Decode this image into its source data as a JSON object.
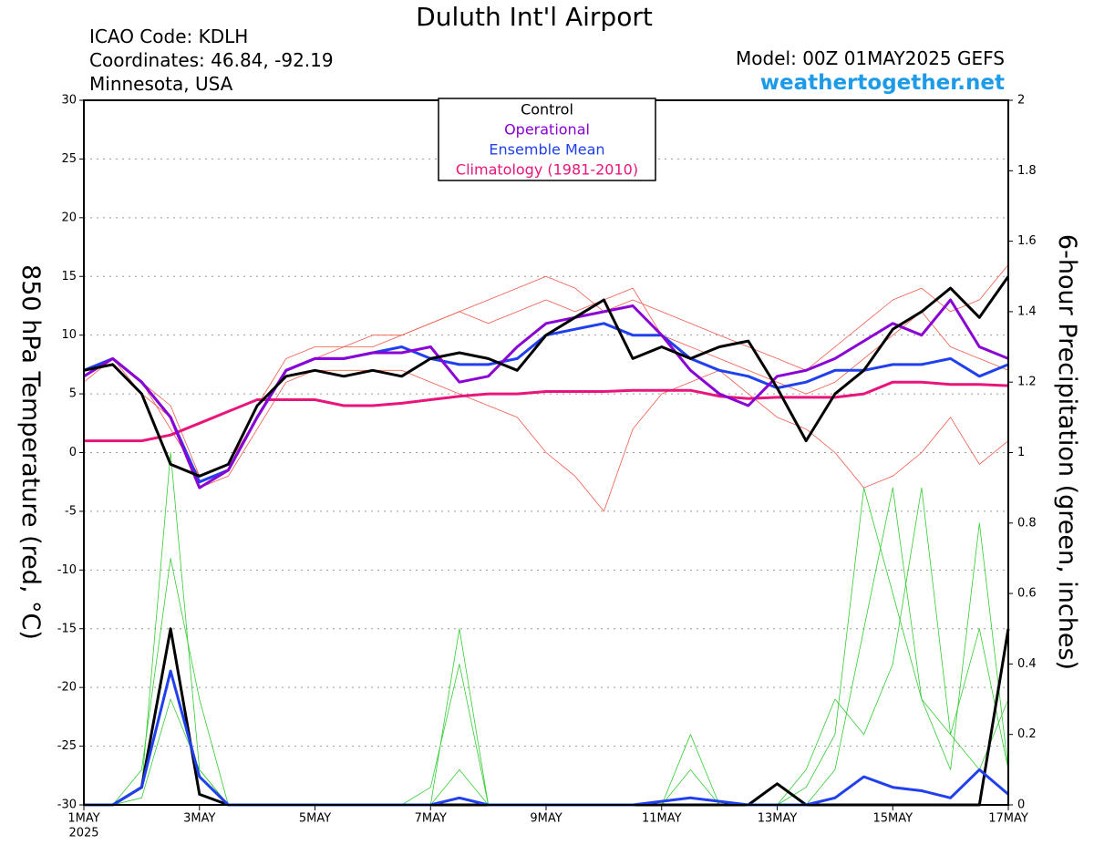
{
  "chart_data": {
    "type": "line",
    "title": "Duluth Int'l Airport",
    "info_lines": [
      "ICAO Code: KDLH",
      "Coordinates: 46.84, -92.19",
      "Minnesota, USA"
    ],
    "model": "Model: 00Z 01MAY2025 GEFS",
    "site": "weathertogether.net",
    "y_label": "850 hPa Temperature (red, °C)",
    "y2_label": "6-hour Precipitation (green, inches)",
    "x_year": "2025",
    "legend": "top-center",
    "grid": true,
    "x": [
      0,
      0.5,
      1,
      1.5,
      2,
      2.5,
      3,
      3.5,
      4,
      4.5,
      5,
      5.5,
      6,
      6.5,
      7,
      7.5,
      8,
      8.5,
      9,
      9.5,
      10,
      10.5,
      11,
      11.5,
      12,
      12.5,
      13,
      13.5,
      14,
      14.5,
      15,
      15.5,
      16
    ],
    "xlim": [
      0,
      16
    ],
    "xticks": [
      {
        "value": 0,
        "label": "1MAY"
      },
      {
        "value": 2,
        "label": "3MAY"
      },
      {
        "value": 4,
        "label": "5MAY"
      },
      {
        "value": 6,
        "label": "7MAY"
      },
      {
        "value": 8,
        "label": "9MAY"
      },
      {
        "value": 10,
        "label": "11MAY"
      },
      {
        "value": 12,
        "label": "13MAY"
      },
      {
        "value": 14,
        "label": "15MAY"
      },
      {
        "value": 16,
        "label": "17MAY"
      }
    ],
    "ylim": [
      -30,
      30
    ],
    "yticks": [
      -30,
      -25,
      -20,
      -15,
      -10,
      -5,
      0,
      5,
      10,
      15,
      20,
      25,
      30
    ],
    "y2lim": [
      0,
      2
    ],
    "y2ticks": [
      0,
      0.2,
      0.4,
      0.6,
      0.8,
      1,
      1.2,
      1.4,
      1.6,
      1.8,
      2
    ],
    "series": [
      {
        "color": "#f05a4a",
        "values": [
          7,
          8,
          6,
          2,
          -2,
          -1,
          4,
          8,
          9,
          9,
          10,
          10,
          11,
          12,
          13,
          14,
          15,
          14,
          12,
          13,
          12,
          11,
          10,
          9,
          8,
          7,
          9,
          11,
          13,
          14,
          12,
          13,
          16
        ]
      },
      {
        "color": "#f05a4a",
        "values": [
          6,
          8,
          5,
          3,
          -3,
          -2,
          2,
          6,
          7,
          7,
          7,
          7,
          6,
          5,
          4,
          3,
          0,
          -2,
          -5,
          2,
          5,
          6,
          7,
          5,
          3,
          2,
          0,
          -3,
          -2,
          0,
          3,
          -1,
          1
        ]
      },
      {
        "color": "#f05a4a",
        "values": [
          7,
          8,
          6,
          4,
          -2,
          -1,
          3,
          7,
          8,
          9,
          9,
          10,
          11,
          12,
          11,
          12,
          13,
          12,
          13,
          14,
          10,
          9,
          8,
          7,
          6,
          5,
          6,
          8,
          10,
          12,
          9,
          8,
          7
        ]
      },
      {
        "color": "#33cc33",
        "axis": "y2",
        "values": [
          0,
          0,
          0.05,
          1.0,
          0.1,
          0,
          0,
          0,
          0,
          0,
          0,
          0,
          0.05,
          0.4,
          0,
          0,
          0,
          0,
          0,
          0,
          0,
          0,
          0,
          0,
          0,
          0.05,
          0.2,
          0.9,
          0.6,
          0.3,
          0.1,
          0.8,
          0.1
        ]
      },
      {
        "color": "#33cc33",
        "axis": "y2",
        "values": [
          0,
          0,
          0.1,
          0.7,
          0.3,
          0,
          0,
          0,
          0,
          0,
          0,
          0,
          0,
          0.5,
          0,
          0,
          0,
          0,
          0,
          0,
          0,
          0.1,
          0,
          0,
          0,
          0.1,
          0.3,
          0.2,
          0.4,
          0.9,
          0.2,
          0.5,
          0.1
        ]
      },
      {
        "color": "#33cc33",
        "axis": "y2",
        "values": [
          0,
          0,
          0.02,
          0.3,
          0.1,
          0,
          0,
          0,
          0,
          0,
          0,
          0,
          0,
          0.1,
          0,
          0,
          0,
          0,
          0,
          0,
          0,
          0.2,
          0,
          0,
          0,
          0,
          0.1,
          0.5,
          0.9,
          0.3,
          0.2,
          0.1,
          0.3
        ]
      },
      {
        "color": "#000000",
        "axis": "y2",
        "values": [
          0,
          0,
          0.05,
          0.5,
          0.03,
          0,
          0,
          0,
          0,
          0,
          0,
          0,
          0,
          0,
          0,
          0,
          0,
          0,
          0,
          0,
          0,
          0,
          0,
          0,
          0.06,
          0,
          0,
          0,
          0,
          0,
          0,
          0,
          0.5
        ]
      },
      {
        "color": "#2040ee",
        "axis": "y2",
        "values": [
          0,
          0,
          0.05,
          0.38,
          0.08,
          0,
          0,
          0,
          0,
          0,
          0,
          0,
          0,
          0.02,
          0,
          0,
          0,
          0,
          0,
          0,
          0.01,
          0.02,
          0.01,
          0,
          0,
          0,
          0.02,
          0.08,
          0.05,
          0.04,
          0.02,
          0.1,
          0.03
        ]
      },
      {
        "name": "Climatology (1981-2010)",
        "color": "#e8157a",
        "values": [
          1,
          1,
          1,
          1.5,
          2.5,
          3.5,
          4.5,
          4.5,
          4.5,
          4,
          4,
          4.2,
          4.5,
          4.8,
          5,
          5,
          5.2,
          5.2,
          5.2,
          5.3,
          5.3,
          5.3,
          4.8,
          4.6,
          4.7,
          4.7,
          4.7,
          5,
          6,
          6,
          5.8,
          5.8,
          5.7
        ]
      },
      {
        "name": "Ensemble Mean",
        "color": "#2040ee",
        "values": [
          7,
          8,
          6,
          3,
          -2.5,
          -1.5,
          3,
          7,
          8,
          8,
          8.5,
          9,
          8,
          7.5,
          7.5,
          8,
          10,
          10.5,
          11,
          10,
          10,
          8,
          7,
          6.5,
          5.5,
          6,
          7,
          7,
          7.5,
          7.5,
          8,
          6.5,
          7.5
        ]
      },
      {
        "name": "Operational",
        "color": "#8a00d4",
        "values": [
          6.5,
          8,
          6,
          3,
          -3,
          -1.5,
          3,
          7,
          8,
          8,
          8.5,
          8.5,
          9,
          6,
          6.5,
          9,
          11,
          11.5,
          12,
          12.5,
          10,
          7,
          5,
          4,
          6.5,
          7,
          8,
          9.5,
          11,
          10,
          13,
          9,
          8
        ]
      },
      {
        "name": "Control",
        "color": "#000000",
        "values": [
          7,
          7.5,
          5,
          -1,
          -2,
          -1,
          4,
          6.5,
          7,
          6.5,
          7,
          6.5,
          8,
          8.5,
          8,
          7,
          10,
          11.5,
          13,
          8,
          9,
          8,
          9,
          9.5,
          5.5,
          1,
          5,
          7,
          10.5,
          12,
          14,
          11.5,
          15
        ]
      }
    ]
  }
}
